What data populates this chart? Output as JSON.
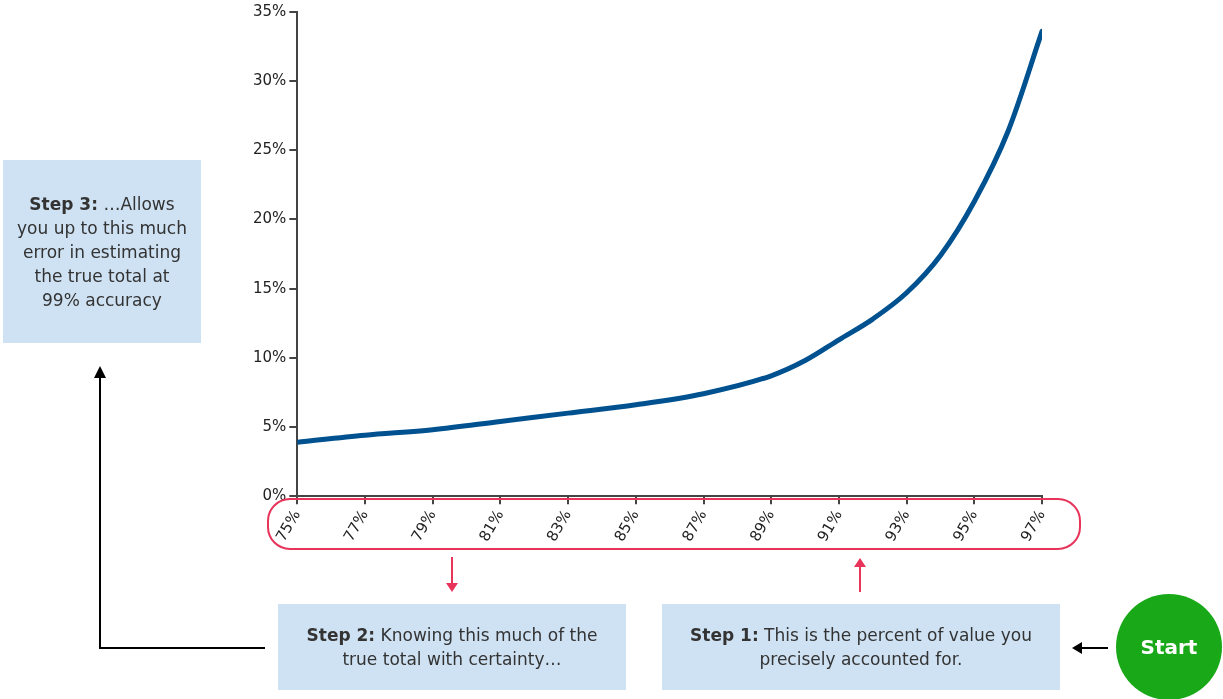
{
  "chart_data": {
    "type": "line",
    "x": [
      75,
      77,
      79,
      81,
      83,
      85,
      87,
      89,
      90,
      91,
      92,
      93,
      94,
      95,
      96,
      97
    ],
    "series": [
      {
        "color": "#00518f",
        "values": [
          3.9,
          4.4,
          4.8,
          5.4,
          6.0,
          6.6,
          7.4,
          8.7,
          9.8,
          11.3,
          12.8,
          14.7,
          17.4,
          21.3,
          26.4,
          33.6
        ]
      }
    ],
    "xlim": [
      75,
      97
    ],
    "xticks": [
      {
        "value": 75,
        "label": "75%"
      },
      {
        "value": 77,
        "label": "77%"
      },
      {
        "value": 79,
        "label": "79%"
      },
      {
        "value": 81,
        "label": "81%"
      },
      {
        "value": 83,
        "label": "83%"
      },
      {
        "value": 85,
        "label": "85%"
      },
      {
        "value": 87,
        "label": "87%"
      },
      {
        "value": 89,
        "label": "89%"
      },
      {
        "value": 91,
        "label": "91%"
      },
      {
        "value": 93,
        "label": "93%"
      },
      {
        "value": 95,
        "label": "95%"
      },
      {
        "value": 97,
        "label": "97%"
      }
    ],
    "ylim": [
      0,
      35
    ],
    "yticks": [
      {
        "value": 0,
        "label": "0%"
      },
      {
        "value": 5,
        "label": "5%"
      },
      {
        "value": 10,
        "label": "10%"
      },
      {
        "value": 15,
        "label": "15%"
      },
      {
        "value": 20,
        "label": "20%"
      },
      {
        "value": 25,
        "label": "25%"
      },
      {
        "value": 30,
        "label": "30%"
      },
      {
        "value": 35,
        "label": "35%"
      }
    ],
    "grid": false,
    "legend": false,
    "marker": "none",
    "line_style": "solid",
    "annotations": [
      "Step 3: …Allows you up to this much error in estimating the true total at 99% accuracy",
      "Step 2: Knowing this much of the true total with certainty…",
      "Step 1: This is the percent of value you precisely accounted for.",
      "Start"
    ]
  }
}
